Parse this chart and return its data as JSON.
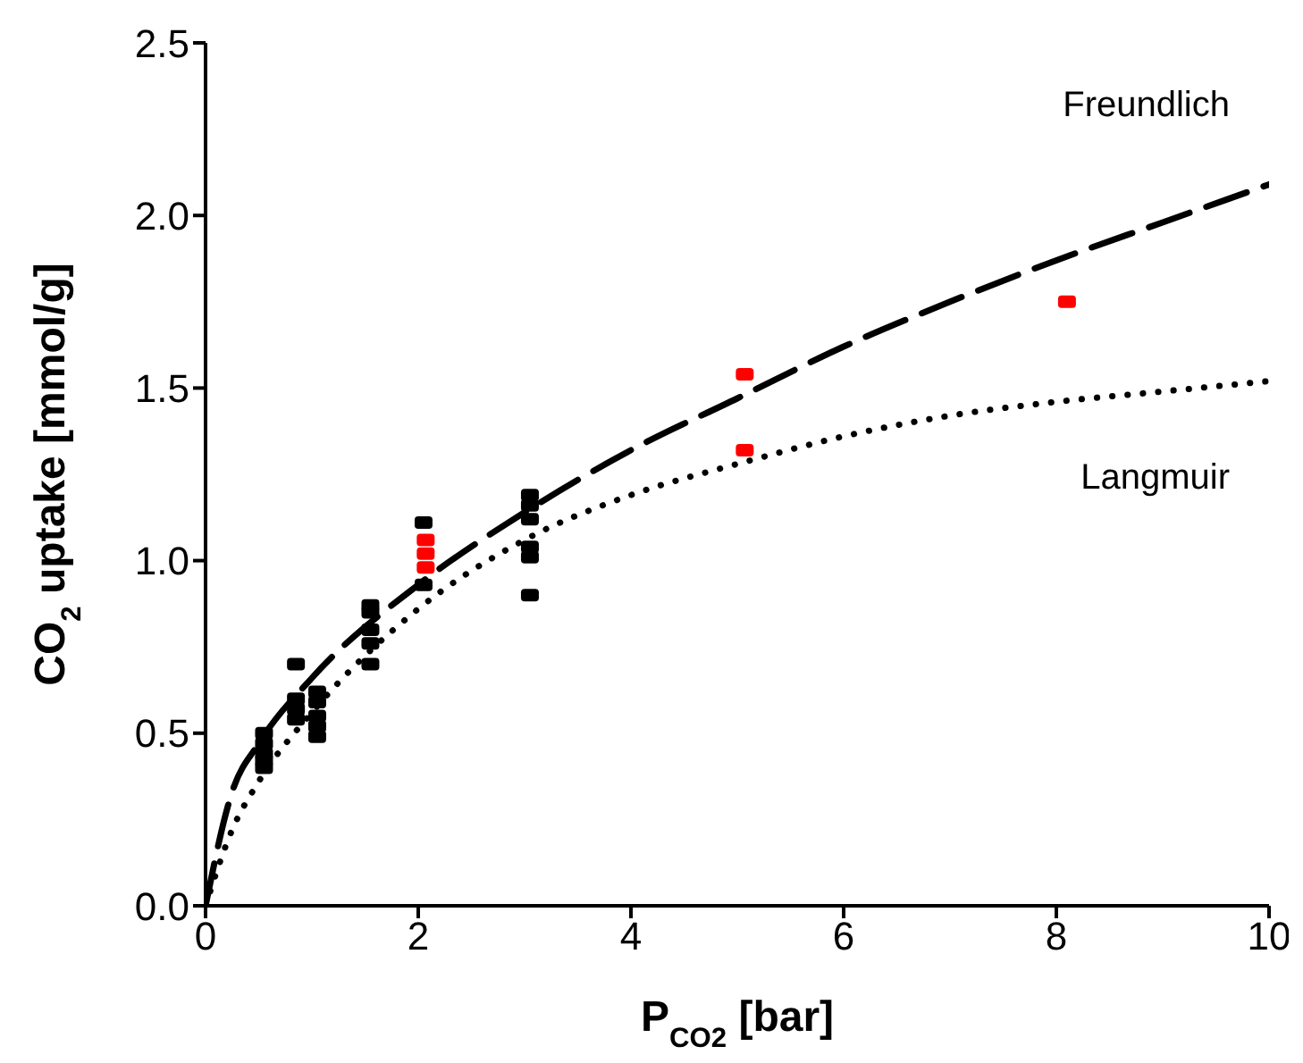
{
  "chart_data": {
    "type": "scatter",
    "xlabel": "P$_{CO2}$ [bar]",
    "ylabel": "CO$_{2}$ uptake [mmol/g]",
    "xlim": [
      0,
      10
    ],
    "xticks": [
      0,
      2,
      4,
      6,
      8,
      10
    ],
    "ylim": [
      0,
      2.5
    ],
    "yticks": [
      {
        "value": 0,
        "label": "0.0"
      },
      {
        "value": 0.5,
        "label": "0.5"
      },
      {
        "value": 1,
        "label": "1.0"
      },
      {
        "value": 1.5,
        "label": "1.5"
      },
      {
        "value": 2,
        "label": "2.0"
      },
      {
        "value": 2.5,
        "label": "2.5"
      }
    ],
    "marker": "square",
    "series": [
      {
        "color": "#000000",
        "x": [
          0.55,
          0.55,
          0.55,
          0.55,
          0.55,
          0.85,
          0.85,
          0.85,
          0.85,
          1.05,
          1.05,
          1.05,
          1.05,
          1.05,
          1.55,
          1.55,
          1.55,
          1.55,
          1.55,
          2.05,
          2.05,
          3.05,
          3.05,
          3.05,
          3.05,
          3.05,
          3.05
        ],
        "values": [
          0.5,
          0.47,
          0.44,
          0.42,
          0.4,
          0.7,
          0.6,
          0.57,
          0.54,
          0.62,
          0.59,
          0.55,
          0.52,
          0.49,
          0.87,
          0.85,
          0.8,
          0.76,
          0.7,
          1.11,
          0.93,
          1.19,
          1.16,
          1.12,
          1.04,
          1.01,
          0.9
        ]
      },
      {
        "color": "#ff0000",
        "x": [
          2.07,
          2.07,
          2.07,
          5.07,
          5.07,
          8.1
        ],
        "values": [
          1.06,
          1.02,
          0.98,
          1.54,
          1.32,
          1.75
        ]
      },
      {
        "type": "line",
        "name": "Freundlich",
        "color": "#000000",
        "line_style": "dashed",
        "marker": "none",
        "x": [
          0,
          0.25,
          0.5,
          1,
          2,
          3,
          4,
          5,
          6,
          7,
          8,
          9,
          10
        ],
        "values": [
          0,
          0.33,
          0.47,
          0.66,
          0.93,
          1.14,
          1.32,
          1.47,
          1.62,
          1.75,
          1.87,
          1.98,
          2.09
        ]
      },
      {
        "type": "line",
        "name": "Langmuir",
        "color": "#000000",
        "line_style": "dotted",
        "marker": "none",
        "x": [
          0,
          0.25,
          0.5,
          1,
          2,
          3,
          4,
          5,
          6,
          7,
          8,
          9,
          10
        ],
        "values": [
          0,
          0.22,
          0.36,
          0.56,
          0.86,
          1.06,
          1.19,
          1.28,
          1.36,
          1.42,
          1.46,
          1.49,
          1.52
        ]
      }
    ]
  }
}
